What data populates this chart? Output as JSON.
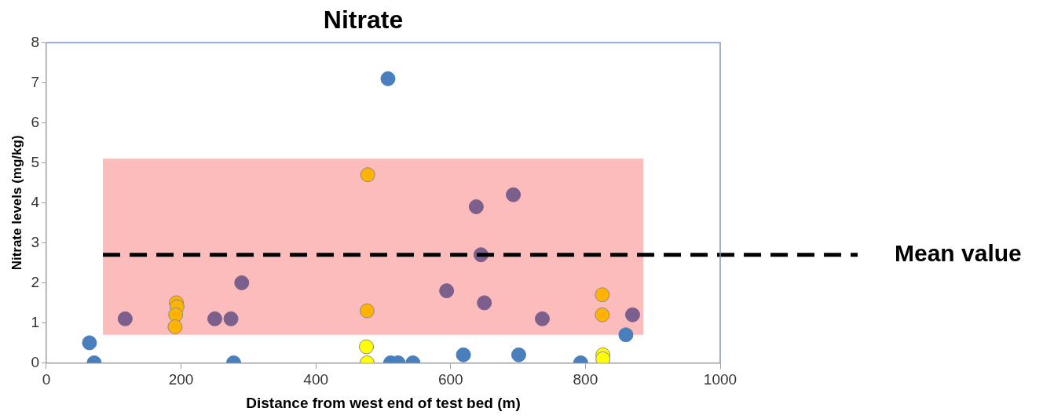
{
  "chart_data": {
    "type": "scatter",
    "title": "Nitrate",
    "xlabel": "Distance from west end of test bed (m)",
    "ylabel": "Nitrate levels (mg/kg)",
    "xlim": [
      0,
      1000
    ],
    "xticks": [
      0,
      200,
      400,
      600,
      800,
      1000
    ],
    "ylim": [
      0,
      8
    ],
    "yticks": [
      0,
      1,
      2,
      3,
      4,
      5,
      6,
      7,
      8
    ],
    "grid": false,
    "legend": false,
    "marker": "circle",
    "series": [
      {
        "color": "#4a7fbd",
        "x": [
          64,
          71,
          278,
          507,
          511,
          522,
          544,
          619,
          701,
          793,
          860
        ],
        "values": [
          0.5,
          0,
          0,
          7.1,
          0,
          0,
          0,
          0.2,
          0.2,
          0,
          0.7
        ]
      },
      {
        "color": "#7b5f8c",
        "x": [
          117,
          250,
          274,
          290,
          594,
          638,
          645,
          650,
          693,
          736,
          870
        ],
        "values": [
          1.1,
          1.1,
          1.1,
          2.0,
          1.8,
          3.9,
          2.7,
          1.5,
          4.2,
          1.1,
          1.2
        ]
      },
      {
        "color": "#ffb300",
        "x": [
          193,
          194,
          192,
          191,
          477,
          476,
          825,
          825
        ],
        "values": [
          1.5,
          1.4,
          1.2,
          0.9,
          4.7,
          1.3,
          1.7,
          1.2
        ]
      },
      {
        "color": "#ffff00",
        "x": [
          475,
          476,
          826,
          826
        ],
        "values": [
          0.4,
          0,
          0.2,
          0.1
        ]
      }
    ],
    "bands": [
      {
        "axis": "y",
        "from": 0.7,
        "to": 5.1,
        "color": "#fcbcbc"
      }
    ],
    "ref_lines": [
      {
        "axis": "y",
        "value": 2.7,
        "label": "Mean value",
        "line_style": "dashed",
        "color": "#000000"
      }
    ]
  }
}
